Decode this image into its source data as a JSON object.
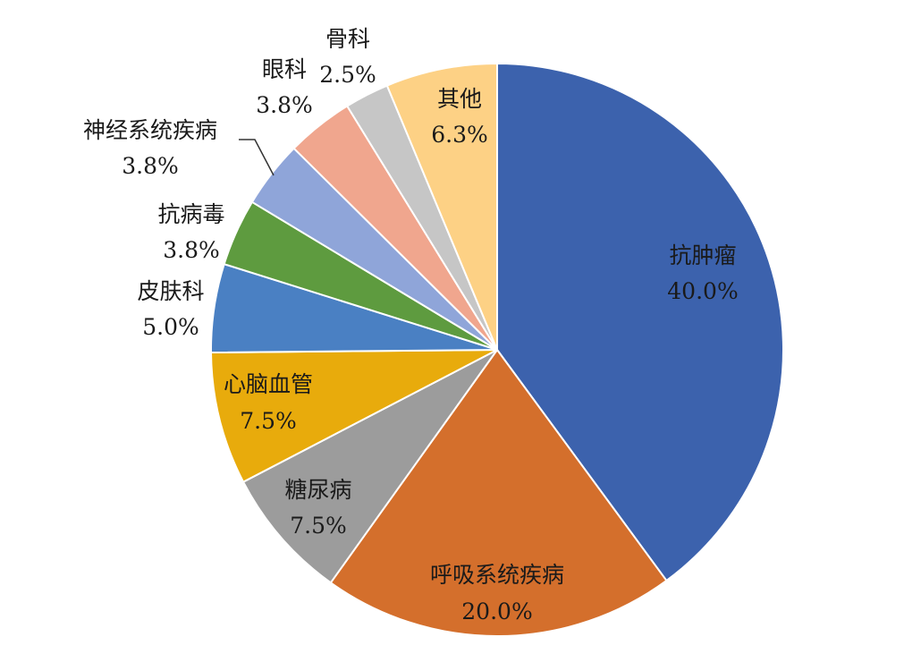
{
  "chart_data": {
    "type": "pie",
    "title": "",
    "start_angle_deg": 0,
    "direction": "clockwise",
    "slices": [
      {
        "label": "抗肿瘤",
        "value": 40.0,
        "value_label": "40.0%",
        "color": "#3c62ad"
      },
      {
        "label": "呼吸系统疾病",
        "value": 20.0,
        "value_label": "20.0%",
        "color": "#d46f2c"
      },
      {
        "label": "糖尿病",
        "value": 7.5,
        "value_label": "7.5%",
        "color": "#9c9c9c"
      },
      {
        "label": "心脑血管",
        "value": 7.5,
        "value_label": "7.5%",
        "color": "#e8ab0c"
      },
      {
        "label": "皮肤科",
        "value": 5.0,
        "value_label": "5.0%",
        "color": "#4a80c3"
      },
      {
        "label": "抗病毒",
        "value": 3.8,
        "value_label": "3.8%",
        "color": "#5e9b3f"
      },
      {
        "label": "神经系统疾病",
        "value": 3.8,
        "value_label": "3.8%",
        "color": "#8fa5d9"
      },
      {
        "label": "眼科",
        "value": 3.8,
        "value_label": "3.8%",
        "color": "#f0a68e"
      },
      {
        "label": "骨科",
        "value": 2.5,
        "value_label": "2.5%",
        "color": "#c6c6c6"
      },
      {
        "label": "其他",
        "value": 6.3,
        "value_label": "6.3%",
        "color": "#fdd185"
      }
    ]
  }
}
